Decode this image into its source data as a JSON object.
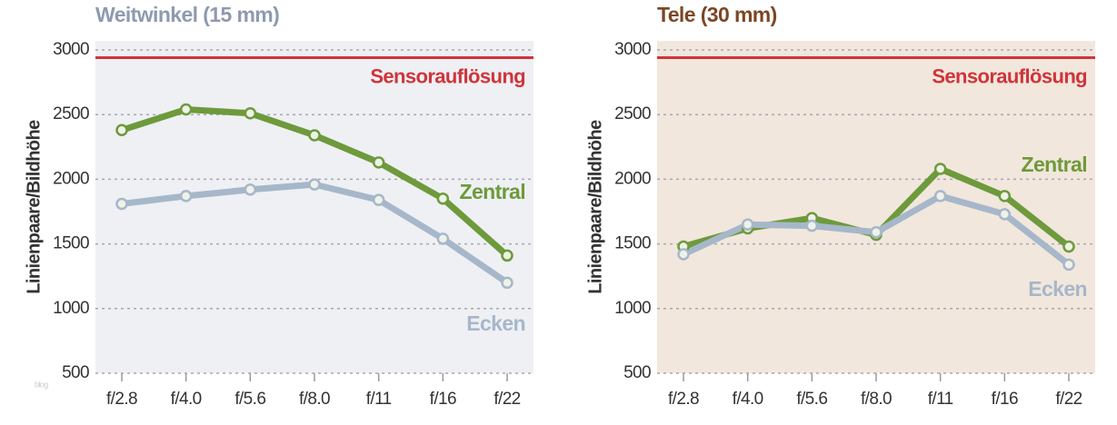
{
  "chart_data": [
    {
      "type": "line",
      "title": "Weitwinkel (15 mm)",
      "title_color": "#8e9aae",
      "background": "#eef0f4",
      "y_label": "Linienpaare/Bildhöhe",
      "categories": [
        "f/2.8",
        "f/4.0",
        "f/5.6",
        "f/8.0",
        "f/11",
        "f/16",
        "f/22"
      ],
      "series": [
        {
          "name": "Zentral",
          "color": "#6e9a3b",
          "values": [
            2380,
            2540,
            2510,
            2340,
            2130,
            1850,
            1410
          ]
        },
        {
          "name": "Ecken",
          "color": "#a7b7ca",
          "values": [
            1810,
            1870,
            1920,
            1960,
            1840,
            1540,
            1200
          ]
        }
      ],
      "reference_line": {
        "value": 2940,
        "label": "Sensorauflösung",
        "color": "#d0343a"
      },
      "ylim": [
        500,
        3000
      ],
      "yticks": [
        500,
        1000,
        1500,
        2000,
        2500,
        3000
      ],
      "grid": true
    },
    {
      "type": "line",
      "title": "Tele (30 mm)",
      "title_color": "#7b4726",
      "background": "#f1e7dd",
      "y_label": "Linienpaare/Bildhöhe",
      "categories": [
        "f/2.8",
        "f/4.0",
        "f/5.6",
        "f/8.0",
        "f/11",
        "f/16",
        "f/22"
      ],
      "series": [
        {
          "name": "Zentral",
          "color": "#6e9a3b",
          "values": [
            1480,
            1620,
            1700,
            1570,
            2080,
            1870,
            1480
          ]
        },
        {
          "name": "Ecken",
          "color": "#a7b7ca",
          "values": [
            1420,
            1650,
            1640,
            1590,
            1870,
            1730,
            1340
          ]
        }
      ],
      "reference_line": {
        "value": 2940,
        "label": "Sensorauflösung",
        "color": "#d0343a"
      },
      "ylim": [
        500,
        3000
      ],
      "yticks": [
        500,
        1000,
        1500,
        2000,
        2500,
        3000
      ],
      "grid": true
    }
  ],
  "watermark": "blog"
}
